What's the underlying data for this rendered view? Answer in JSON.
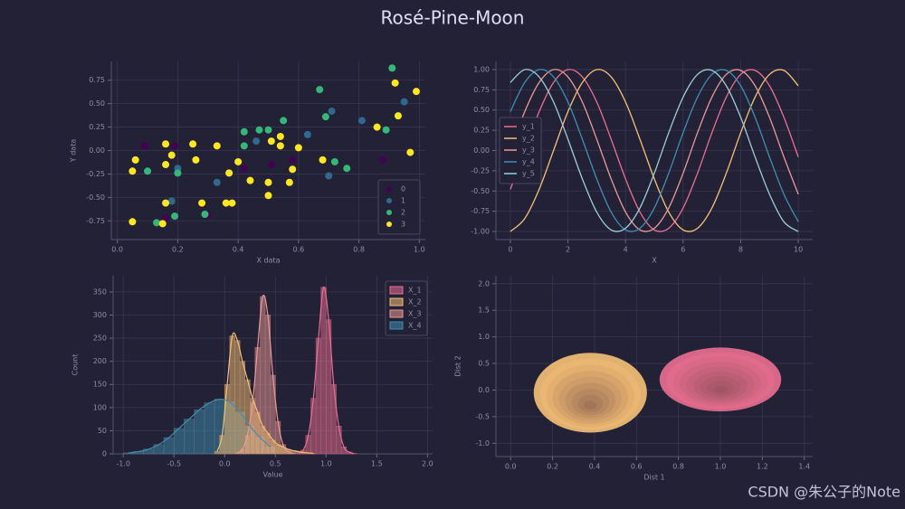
{
  "title": "Rosé-Pine-Moon",
  "watermark": "CSDN @朱公子的Note",
  "chart_data": [
    {
      "type": "scatter",
      "x_label": "X data",
      "y_label": "Y data",
      "grid": true,
      "legend": "lower right",
      "xlim": [
        -0.02,
        1.02
      ],
      "ylim": [
        -0.95,
        0.95
      ],
      "xticks": [
        {
          "value": 0,
          "label": "0.0"
        },
        0.2,
        0.4,
        0.6,
        0.8,
        {
          "value": 1,
          "label": "1.0"
        }
      ],
      "yticks": [
        -0.75,
        {
          "value": -0.5,
          "label": "-0.50"
        },
        -0.25,
        {
          "value": 0,
          "label": "0.00"
        },
        0.25,
        {
          "value": 0.5,
          "label": "0.50"
        },
        0.75
      ],
      "series": [
        {
          "name": "0",
          "color": "#440154",
          "x": [
            0.09,
            0.19,
            0.42,
            0.51,
            0.88,
            0.58,
            0.3,
            0.16
          ],
          "values": [
            0.05,
            0.05,
            -0.19,
            -0.15,
            -0.1,
            -0.1,
            -0.69,
            -0.72
          ]
        },
        {
          "name": "1",
          "color": "#31688e",
          "x": [
            0.46,
            0.33,
            0.18,
            0.63,
            0.81,
            0.95,
            0.71,
            0.7,
            0.2
          ],
          "values": [
            0.1,
            -0.34,
            -0.54,
            0.17,
            0.32,
            0.52,
            0.42,
            -0.27,
            -0.19
          ]
        },
        {
          "name": "2",
          "color": "#35b779",
          "x": [
            0.91,
            0.1,
            0.19,
            0.13,
            0.2,
            0.29,
            0.42,
            0.47,
            0.5,
            0.55,
            0.67,
            0.69,
            0.72,
            0.76,
            0.89,
            0.42
          ],
          "values": [
            0.88,
            -0.22,
            -0.7,
            -0.77,
            -0.24,
            -0.68,
            0.2,
            0.22,
            0.22,
            0.32,
            0.65,
            0.36,
            -0.12,
            -0.19,
            0.22,
            0.05
          ]
        },
        {
          "name": "3",
          "color": "#fde725",
          "x": [
            0.05,
            0.06,
            0.05,
            0.16,
            0.18,
            0.16,
            0.15,
            0.16,
            0.25,
            0.26,
            0.28,
            0.36,
            0.38,
            0.33,
            0.37,
            0.4,
            0.44,
            0.5,
            0.5,
            0.51,
            0.54,
            0.54,
            0.57,
            0.58,
            0.6,
            0.68,
            0.92,
            0.99,
            0.97,
            0.93,
            0.86
          ],
          "values": [
            -0.22,
            -0.1,
            -0.76,
            0.07,
            -0.05,
            -0.56,
            -0.78,
            -0.15,
            0.07,
            -0.1,
            -0.56,
            -0.56,
            -0.56,
            0.05,
            -0.24,
            -0.12,
            -0.32,
            -0.48,
            -0.34,
            0.1,
            0.15,
            0.05,
            -0.34,
            -0.2,
            0.03,
            -0.1,
            0.72,
            0.63,
            -0.02,
            0.37,
            0.25
          ]
        }
      ]
    },
    {
      "type": "line",
      "x_label": "X",
      "grid": true,
      "legend": "center left",
      "xlim": [
        -0.5,
        10.5
      ],
      "ylim": [
        -1.1,
        1.1
      ],
      "xticks": [
        0,
        2,
        4,
        6,
        8,
        10
      ],
      "yticks": [
        {
          "value": -1,
          "label": "-1.00"
        },
        -0.75,
        {
          "value": -0.5,
          "label": "-0.50"
        },
        -0.25,
        {
          "value": 0,
          "label": "0.00"
        },
        0.25,
        {
          "value": 0.5,
          "label": "0.50"
        },
        0.75,
        {
          "value": 1,
          "label": "1.00"
        }
      ],
      "x": [
        0,
        0.5,
        1,
        1.5,
        2,
        2.5,
        3,
        3.5,
        4,
        4.5,
        5,
        5.5,
        6,
        6.5,
        7,
        7.5,
        8,
        8.5,
        9,
        9.5,
        10
      ],
      "series": [
        {
          "name": "y_1",
          "color": "#eb6f92",
          "values": [
            -0.48,
            0,
            0.48,
            0.84,
            1.0,
            0.91,
            0.6,
            0.14,
            -0.35,
            -0.76,
            -0.98,
            -0.96,
            -0.71,
            -0.28,
            0.22,
            0.66,
            0.94,
            0.99,
            0.8,
            0.41,
            -0.08
          ]
        },
        {
          "name": "y_2",
          "color": "#f6c177",
          "values": [
            -1.0,
            -0.84,
            -0.48,
            0,
            0.48,
            0.84,
            1.0,
            0.91,
            0.6,
            0.14,
            -0.35,
            -0.76,
            -0.98,
            -0.96,
            -0.71,
            -0.28,
            0.22,
            0.66,
            0.94,
            0.99,
            0.8
          ]
        },
        {
          "name": "y_3",
          "color": "#ea9a97",
          "values": [
            0,
            0.48,
            0.84,
            1.0,
            0.91,
            0.6,
            0.14,
            -0.35,
            -0.76,
            -0.98,
            -0.96,
            -0.71,
            -0.28,
            0.22,
            0.66,
            0.94,
            0.99,
            0.8,
            0.41,
            -0.08,
            -0.54
          ]
        },
        {
          "name": "y_4",
          "color": "#3e8fb0",
          "values": [
            0.48,
            0.84,
            1.0,
            0.91,
            0.6,
            0.14,
            -0.35,
            -0.76,
            -0.98,
            -0.96,
            -0.71,
            -0.28,
            0.22,
            0.66,
            0.94,
            0.99,
            0.8,
            0.41,
            -0.08,
            -0.54,
            -0.88
          ]
        },
        {
          "name": "y_5",
          "color": "#9ccfd8",
          "values": [
            0.84,
            1.0,
            0.91,
            0.6,
            0.14,
            -0.35,
            -0.76,
            -0.98,
            -0.96,
            -0.71,
            -0.28,
            0.22,
            0.66,
            0.94,
            0.99,
            0.8,
            0.41,
            -0.08,
            -0.54,
            -0.88,
            -1.0
          ]
        }
      ]
    },
    {
      "type": "histogram",
      "x_label": "Value",
      "y_label": "Count",
      "grid": true,
      "legend": "upper right",
      "xlim": [
        -1.1,
        2.05
      ],
      "ylim": [
        0,
        385
      ],
      "xticks": [
        {
          "value": -1,
          "label": "-1.0"
        },
        -0.5,
        {
          "value": 0,
          "label": "0.0"
        },
        0.5,
        {
          "value": 1,
          "label": "1.0"
        },
        1.5,
        {
          "value": 2,
          "label": "2.0"
        }
      ],
      "yticks": [
        0,
        50,
        100,
        150,
        200,
        250,
        300,
        350
      ],
      "series": [
        {
          "name": "X_1",
          "color": "#eb6f92",
          "bins": [
            0.7,
            0.75,
            0.8,
            0.85,
            0.9,
            0.95,
            1.0,
            1.05,
            1.1,
            1.15,
            1.2,
            1.25,
            1.3
          ],
          "values": [
            2,
            8,
            40,
            120,
            250,
            360,
            290,
            150,
            60,
            15,
            4,
            1
          ]
        },
        {
          "name": "X_2",
          "color": "#f6c177",
          "bins": [
            -0.1,
            -0.05,
            0,
            0.05,
            0.1,
            0.15,
            0.2,
            0.25,
            0.3,
            0.35,
            0.4,
            0.45,
            0.5,
            0.55,
            0.6,
            0.65,
            0.7,
            0.75,
            0.8,
            0.85,
            0.9
          ],
          "values": [
            5,
            40,
            150,
            255,
            245,
            200,
            160,
            120,
            90,
            60,
            45,
            30,
            20,
            15,
            10,
            7,
            5,
            3,
            2,
            1
          ]
        },
        {
          "name": "X_3",
          "color": "#ea9a97",
          "bins": [
            0.1,
            0.15,
            0.2,
            0.25,
            0.3,
            0.35,
            0.4,
            0.45,
            0.5,
            0.55,
            0.6,
            0.65,
            0.7
          ],
          "values": [
            2,
            10,
            40,
            110,
            230,
            340,
            300,
            170,
            70,
            20,
            5,
            1
          ]
        },
        {
          "name": "X_4",
          "color": "#3e8fb0",
          "bins": [
            -1.0,
            -0.9,
            -0.8,
            -0.7,
            -0.6,
            -0.5,
            -0.4,
            -0.3,
            -0.2,
            -0.1,
            0,
            0.1,
            0.2,
            0.3,
            0.4,
            0.5
          ],
          "values": [
            2,
            5,
            10,
            20,
            35,
            55,
            75,
            95,
            110,
            118,
            112,
            90,
            60,
            35,
            15
          ]
        }
      ]
    },
    {
      "type": "kde2d",
      "x_label": "Dist 1",
      "y_label": "Dist 2",
      "grid": true,
      "xlim": [
        -0.07,
        1.44
      ],
      "ylim": [
        -1.25,
        2.15
      ],
      "xticks": [
        {
          "value": 0,
          "label": "0.0"
        },
        0.2,
        0.4,
        0.6,
        0.8,
        {
          "value": 1,
          "label": "1.0"
        },
        1.2,
        1.4
      ],
      "yticks": [
        {
          "value": -1,
          "label": "-1.0"
        },
        -0.5,
        {
          "value": 0,
          "label": "0.0"
        },
        0.5,
        {
          "value": 1,
          "label": "1.0"
        },
        1.5,
        {
          "value": 2,
          "label": "2.0"
        }
      ],
      "series": [
        {
          "color": "#f6c177",
          "center": [
            0.38,
            -0.05
          ],
          "spread": [
            0.27,
            0.75
          ]
        },
        {
          "color": "#eb6f92",
          "center": [
            1.0,
            0.2
          ],
          "spread": [
            0.29,
            0.6
          ]
        }
      ]
    }
  ]
}
